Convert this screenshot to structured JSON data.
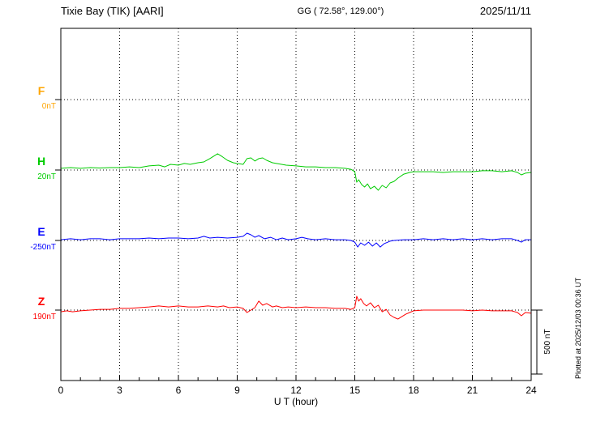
{
  "header": {
    "station": "Tixie Bay (TIK) [AARI]",
    "coords": "GG ( 72.58°, 129.00°)",
    "date": "2025/11/11"
  },
  "side": {
    "scale_label": "500 nT",
    "plotted_at": "Plotted at 2025/12/03 00:36 UT"
  },
  "chart_data": {
    "type": "line",
    "title": "Tixie Bay (TIK) [AARI] magnetogram 2025/11/11",
    "xlabel": "U T (hour)",
    "units": "nT",
    "x_range": [
      0,
      24
    ],
    "x_ticks": [
      0,
      3,
      6,
      9,
      12,
      15,
      18,
      21,
      24
    ],
    "scale_bar_nT": 500,
    "grid": "dotted",
    "series": [
      {
        "name": "F",
        "label": "F",
        "color": "#ffa500",
        "baseline_nT": 0,
        "baseline_label": "0nT",
        "points": []
      },
      {
        "name": "H",
        "label": "H",
        "color": "#00cc00",
        "baseline_nT": 20,
        "baseline_label": "20nT",
        "points": [
          [
            0,
            33
          ],
          [
            0.5,
            39
          ],
          [
            1,
            33
          ],
          [
            1.5,
            39
          ],
          [
            2,
            36
          ],
          [
            2.5,
            39
          ],
          [
            3,
            39
          ],
          [
            3.5,
            45
          ],
          [
            4,
            39
          ],
          [
            4.5,
            52
          ],
          [
            5,
            58
          ],
          [
            5.3,
            45
          ],
          [
            5.6,
            64
          ],
          [
            6,
            58
          ],
          [
            6.3,
            71
          ],
          [
            6.6,
            64
          ],
          [
            7,
            77
          ],
          [
            7.3,
            83
          ],
          [
            7.6,
            109
          ],
          [
            8,
            147
          ],
          [
            8.2,
            128
          ],
          [
            8.5,
            96
          ],
          [
            8.8,
            77
          ],
          [
            9,
            71
          ],
          [
            9.3,
            64
          ],
          [
            9.5,
            109
          ],
          [
            9.7,
            115
          ],
          [
            9.9,
            90
          ],
          [
            10.1,
            109
          ],
          [
            10.3,
            115
          ],
          [
            10.5,
            96
          ],
          [
            10.8,
            77
          ],
          [
            11,
            71
          ],
          [
            11.5,
            58
          ],
          [
            12,
            52
          ],
          [
            12.5,
            45
          ],
          [
            13,
            45
          ],
          [
            13.5,
            39
          ],
          [
            14,
            39
          ],
          [
            14.5,
            33
          ],
          [
            14.8,
            26
          ],
          [
            15,
            7
          ],
          [
            15.1,
            -75
          ],
          [
            15.2,
            -56
          ],
          [
            15.35,
            -94
          ],
          [
            15.5,
            -113
          ],
          [
            15.65,
            -88
          ],
          [
            15.8,
            -126
          ],
          [
            16,
            -107
          ],
          [
            16.2,
            -138
          ],
          [
            16.4,
            -100
          ],
          [
            16.6,
            -119
          ],
          [
            16.8,
            -81
          ],
          [
            17,
            -69
          ],
          [
            17.2,
            -43
          ],
          [
            17.5,
            -12
          ],
          [
            17.8,
            1
          ],
          [
            18,
            7
          ],
          [
            18.5,
            7
          ],
          [
            19,
            7
          ],
          [
            19.5,
            1
          ],
          [
            20,
            7
          ],
          [
            20.5,
            7
          ],
          [
            21,
            7
          ],
          [
            21.5,
            14
          ],
          [
            22,
            14
          ],
          [
            22.5,
            7
          ],
          [
            23,
            14
          ],
          [
            23.3,
            1
          ],
          [
            23.5,
            -18
          ],
          [
            23.7,
            -5
          ],
          [
            24,
            1
          ]
        ]
      },
      {
        "name": "E",
        "label": "E",
        "color": "#0000ff",
        "baseline_nT": -250,
        "baseline_label": "-250nT",
        "points": [
          [
            0,
            -244
          ],
          [
            0.5,
            -237
          ],
          [
            1,
            -244
          ],
          [
            1.5,
            -237
          ],
          [
            2,
            -237
          ],
          [
            2.5,
            -244
          ],
          [
            3,
            -237
          ],
          [
            3.5,
            -237
          ],
          [
            4,
            -237
          ],
          [
            4.5,
            -231
          ],
          [
            5,
            -237
          ],
          [
            5.5,
            -231
          ],
          [
            6,
            -231
          ],
          [
            6.5,
            -237
          ],
          [
            7,
            -231
          ],
          [
            7.3,
            -218
          ],
          [
            7.6,
            -231
          ],
          [
            8,
            -225
          ],
          [
            8.5,
            -231
          ],
          [
            9,
            -225
          ],
          [
            9.3,
            -218
          ],
          [
            9.5,
            -193
          ],
          [
            9.7,
            -206
          ],
          [
            9.9,
            -225
          ],
          [
            10.1,
            -212
          ],
          [
            10.4,
            -237
          ],
          [
            10.7,
            -225
          ],
          [
            11,
            -244
          ],
          [
            11.3,
            -231
          ],
          [
            11.6,
            -244
          ],
          [
            12,
            -237
          ],
          [
            12.3,
            -225
          ],
          [
            12.6,
            -237
          ],
          [
            13,
            -244
          ],
          [
            13.5,
            -237
          ],
          [
            14,
            -244
          ],
          [
            14.5,
            -244
          ],
          [
            14.8,
            -250
          ],
          [
            15,
            -263
          ],
          [
            15.15,
            -301
          ],
          [
            15.3,
            -269
          ],
          [
            15.5,
            -288
          ],
          [
            15.7,
            -263
          ],
          [
            15.9,
            -294
          ],
          [
            16.1,
            -269
          ],
          [
            16.3,
            -301
          ],
          [
            16.5,
            -275
          ],
          [
            16.8,
            -256
          ],
          [
            17,
            -250
          ],
          [
            17.5,
            -244
          ],
          [
            18,
            -244
          ],
          [
            18.5,
            -237
          ],
          [
            19,
            -244
          ],
          [
            19.5,
            -237
          ],
          [
            20,
            -244
          ],
          [
            20.5,
            -237
          ],
          [
            21,
            -244
          ],
          [
            21.5,
            -237
          ],
          [
            22,
            -244
          ],
          [
            22.5,
            -237
          ],
          [
            23,
            -237
          ],
          [
            23.3,
            -250
          ],
          [
            23.5,
            -263
          ],
          [
            23.7,
            -244
          ],
          [
            24,
            -244
          ]
        ]
      },
      {
        "name": "Z",
        "label": "Z",
        "color": "#ff0000",
        "baseline_nT": 190,
        "baseline_label": "190nT",
        "points": [
          [
            0,
            177
          ],
          [
            0.3,
            184
          ],
          [
            0.6,
            177
          ],
          [
            1,
            184
          ],
          [
            1.5,
            190
          ],
          [
            2,
            196
          ],
          [
            2.5,
            196
          ],
          [
            3,
            203
          ],
          [
            3.5,
            203
          ],
          [
            4,
            209
          ],
          [
            4.5,
            215
          ],
          [
            5,
            222
          ],
          [
            5.5,
            215
          ],
          [
            6,
            222
          ],
          [
            6.5,
            215
          ],
          [
            7,
            215
          ],
          [
            7.5,
            222
          ],
          [
            8,
            215
          ],
          [
            8.3,
            222
          ],
          [
            8.6,
            209
          ],
          [
            9,
            215
          ],
          [
            9.3,
            203
          ],
          [
            9.5,
            171
          ],
          [
            9.7,
            190
          ],
          [
            9.9,
            209
          ],
          [
            10.1,
            260
          ],
          [
            10.3,
            228
          ],
          [
            10.5,
            241
          ],
          [
            10.8,
            215
          ],
          [
            11,
            222
          ],
          [
            11.3,
            209
          ],
          [
            11.6,
            215
          ],
          [
            12,
            209
          ],
          [
            12.5,
            215
          ],
          [
            13,
            209
          ],
          [
            13.5,
            209
          ],
          [
            14,
            203
          ],
          [
            14.5,
            203
          ],
          [
            14.8,
            196
          ],
          [
            15,
            209
          ],
          [
            15.1,
            298
          ],
          [
            15.2,
            260
          ],
          [
            15.3,
            279
          ],
          [
            15.45,
            241
          ],
          [
            15.6,
            222
          ],
          [
            15.8,
            247
          ],
          [
            16,
            209
          ],
          [
            16.2,
            228
          ],
          [
            16.4,
            177
          ],
          [
            16.6,
            196
          ],
          [
            16.8,
            152
          ],
          [
            17,
            133
          ],
          [
            17.2,
            120
          ],
          [
            17.4,
            139
          ],
          [
            17.6,
            158
          ],
          [
            17.8,
            171
          ],
          [
            18,
            184
          ],
          [
            18.5,
            190
          ],
          [
            19,
            190
          ],
          [
            19.5,
            190
          ],
          [
            20,
            190
          ],
          [
            20.5,
            190
          ],
          [
            21,
            184
          ],
          [
            21.5,
            190
          ],
          [
            22,
            184
          ],
          [
            22.5,
            184
          ],
          [
            23,
            184
          ],
          [
            23.3,
            171
          ],
          [
            23.5,
            146
          ],
          [
            23.7,
            171
          ],
          [
            24,
            165
          ]
        ]
      }
    ]
  }
}
